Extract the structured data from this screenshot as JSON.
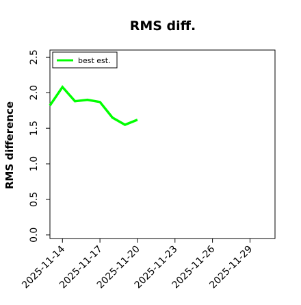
{
  "chart_data": {
    "type": "line",
    "title": "RMS diff.",
    "xlabel": "",
    "ylabel": "RMS difference",
    "x_ticks": [
      "2025-11-14",
      "2025-11-17",
      "2025-11-20",
      "2025-11-23",
      "2025-11-26",
      "2025-11-29"
    ],
    "y_ticks": [
      "0.0",
      "0.5",
      "1.0",
      "1.5",
      "2.0",
      "2.5"
    ],
    "xlim": [
      "2025-11-13",
      "2025-12-01"
    ],
    "ylim": [
      -0.05,
      2.6
    ],
    "grid": false,
    "legend_position": "top-left",
    "series": [
      {
        "name": "best est.",
        "color": "#00ff00",
        "x": [
          "2025-11-13",
          "2025-11-14",
          "2025-11-15",
          "2025-11-16",
          "2025-11-17",
          "2025-11-18",
          "2025-11-19",
          "2025-11-20"
        ],
        "y": [
          1.82,
          2.08,
          1.88,
          1.9,
          1.87,
          1.65,
          1.55,
          1.62
        ]
      }
    ]
  }
}
